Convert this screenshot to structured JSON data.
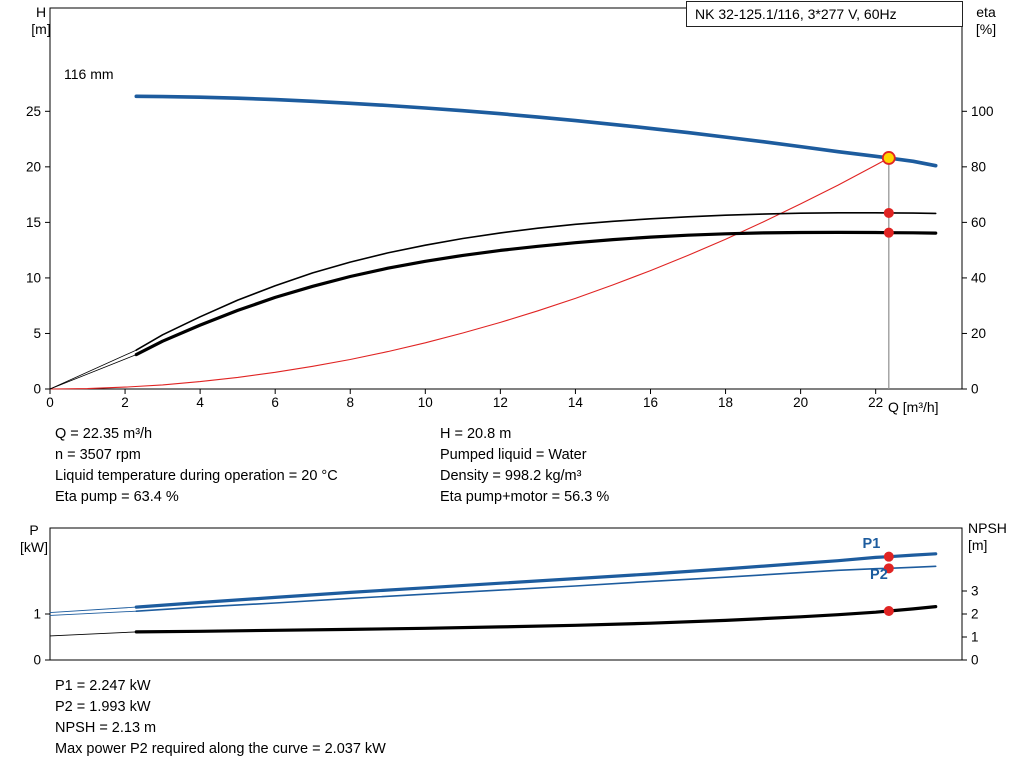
{
  "title_box": "NK 32-125.1/116, 3*277 V, 60Hz",
  "impeller_label": "116 mm",
  "axes": {
    "h": [
      "H",
      "[m]"
    ],
    "eta": [
      "eta",
      "[%]"
    ],
    "q": "Q [m³/h]",
    "p": [
      "P",
      "[kW]"
    ],
    "npsh": [
      "NPSH",
      "[m]"
    ]
  },
  "top_info": {
    "left": [
      "Q = 22.35 m³/h",
      "n = 3507 rpm",
      "Liquid temperature during operation = 20 °C",
      "Eta pump = 63.4 %"
    ],
    "right": [
      "H = 20.8 m",
      "Pumped liquid = Water",
      "Density = 998.2 kg/m³",
      "Eta pump+motor = 56.3 %"
    ]
  },
  "bottom_info": [
    "P1 = 2.247 kW",
    "P2 = 1.993 kW",
    "NPSH = 2.13 m",
    "Max power P2 required along the curve = 2.037 kW"
  ],
  "colors": {
    "curve_blue": "#1d5c9e",
    "marker_red": "#e02423",
    "duty_yellow": "#ffd500",
    "duty_line_gray": "#8f8f8f",
    "black": "#000000"
  },
  "chart_data": [
    {
      "type": "line",
      "title": "NK 32-125.1/116, 3*277 V, 60Hz",
      "xlabel": "Q [m³/h]",
      "ylabel_left": "H [m]",
      "ylabel_right": "eta [%]",
      "xlim": [
        0,
        24.3
      ],
      "ylim_left": [
        0,
        34.3
      ],
      "ylim_right": [
        0,
        137.2
      ],
      "xticks": [
        0,
        2,
        4,
        6,
        8,
        10,
        12,
        14,
        16,
        18,
        20,
        22
      ],
      "yticks_left": [
        0,
        5,
        10,
        15,
        20,
        25
      ],
      "yticks_right": [
        0,
        20,
        40,
        60,
        80,
        100
      ],
      "grid": false,
      "duty_line": {
        "q": 22.35,
        "v": 20.8,
        "axis": "left"
      },
      "series": [
        {
          "name": "head-curve-116mm",
          "axis": "left",
          "color": "#1d5c9e",
          "width": 3.6,
          "points": [
            [
              2.3,
              26.35
            ],
            [
              3,
              26.32
            ],
            [
              4,
              26.27
            ],
            [
              5,
              26.18
            ],
            [
              6,
              26.05
            ],
            [
              7,
              25.9
            ],
            [
              8,
              25.72
            ],
            [
              9,
              25.52
            ],
            [
              10,
              25.3
            ],
            [
              11,
              25.05
            ],
            [
              12,
              24.78
            ],
            [
              13,
              24.48
            ],
            [
              14,
              24.16
            ],
            [
              15,
              23.82
            ],
            [
              16,
              23.46
            ],
            [
              17,
              23.08
            ],
            [
              18,
              22.68
            ],
            [
              19,
              22.26
            ],
            [
              20,
              21.82
            ],
            [
              21,
              21.36
            ],
            [
              22,
              20.95
            ],
            [
              22.35,
              20.8
            ],
            [
              23,
              20.5
            ],
            [
              23.6,
              20.1
            ]
          ]
        },
        {
          "name": "system-curve",
          "axis": "left",
          "color": "#e02423",
          "width": 1.1,
          "points": [
            [
              0,
              0
            ],
            [
              1,
              0.04
            ],
            [
              2,
              0.17
            ],
            [
              3,
              0.37
            ],
            [
              4,
              0.67
            ],
            [
              5,
              1.04
            ],
            [
              6,
              1.5
            ],
            [
              7,
              2.04
            ],
            [
              8,
              2.66
            ],
            [
              9,
              3.37
            ],
            [
              10,
              4.16
            ],
            [
              11,
              5.04
            ],
            [
              12,
              6.0
            ],
            [
              13,
              7.04
            ],
            [
              14,
              8.16
            ],
            [
              15,
              9.37
            ],
            [
              16,
              10.66
            ],
            [
              17,
              12.03
            ],
            [
              18,
              13.49
            ],
            [
              19,
              15.03
            ],
            [
              20,
              16.66
            ],
            [
              21,
              18.36
            ],
            [
              22,
              20.16
            ],
            [
              22.35,
              20.8
            ]
          ]
        },
        {
          "name": "eta-pump-leadin",
          "axis": "right",
          "color": "#000000",
          "width": 0.8,
          "points": [
            [
              0,
              0
            ],
            [
              2.3,
              14
            ]
          ]
        },
        {
          "name": "eta-pump-curve",
          "axis": "right",
          "color": "#000000",
          "width": 1.6,
          "points": [
            [
              2.3,
              14
            ],
            [
              3,
              19.5
            ],
            [
              4,
              26
            ],
            [
              5,
              32
            ],
            [
              6,
              37.2
            ],
            [
              7,
              41.8
            ],
            [
              8,
              45.7
            ],
            [
              9,
              49
            ],
            [
              10,
              51.8
            ],
            [
              11,
              54.2
            ],
            [
              12,
              56.2
            ],
            [
              13,
              57.9
            ],
            [
              14,
              59.3
            ],
            [
              15,
              60.4
            ],
            [
              16,
              61.3
            ],
            [
              17,
              62
            ],
            [
              18,
              62.6
            ],
            [
              19,
              63
            ],
            [
              20,
              63.3
            ],
            [
              21,
              63.45
            ],
            [
              22,
              63.45
            ],
            [
              22.35,
              63.4
            ],
            [
              23,
              63.35
            ],
            [
              23.6,
              63.25
            ]
          ]
        },
        {
          "name": "eta-pump-motor-leadin",
          "axis": "right",
          "color": "#000000",
          "width": 0.8,
          "points": [
            [
              0,
              0
            ],
            [
              2.3,
              12.4
            ]
          ]
        },
        {
          "name": "eta-pump-motor-curve",
          "axis": "right",
          "color": "#000000",
          "width": 3.2,
          "points": [
            [
              2.3,
              12.4
            ],
            [
              3,
              17.2
            ],
            [
              4,
              23
            ],
            [
              5,
              28.3
            ],
            [
              6,
              33
            ],
            [
              7,
              37
            ],
            [
              8,
              40.5
            ],
            [
              9,
              43.5
            ],
            [
              10,
              46
            ],
            [
              11,
              48.1
            ],
            [
              12,
              49.9
            ],
            [
              13,
              51.4
            ],
            [
              14,
              52.7
            ],
            [
              15,
              53.8
            ],
            [
              16,
              54.7
            ],
            [
              17,
              55.4
            ],
            [
              18,
              55.9
            ],
            [
              19,
              56.2
            ],
            [
              20,
              56.35
            ],
            [
              21,
              56.4
            ],
            [
              22,
              56.35
            ],
            [
              22.35,
              56.3
            ],
            [
              23,
              56.25
            ],
            [
              23.6,
              56.15
            ]
          ]
        }
      ],
      "markers": [
        {
          "name": "duty-point",
          "q": 22.35,
          "v": 20.8,
          "axis": "left",
          "r": 6,
          "fill": "#ffd500",
          "stroke": "#e02423"
        },
        {
          "name": "eta-pump-point",
          "q": 22.35,
          "v": 63.4,
          "axis": "right",
          "r": 5,
          "fill": "#e02423"
        },
        {
          "name": "eta-pump-motor-point",
          "q": 22.35,
          "v": 56.3,
          "axis": "right",
          "r": 5,
          "fill": "#e02423"
        }
      ],
      "labels": []
    },
    {
      "type": "line",
      "title": "",
      "xlabel": "Q [m³/h]",
      "ylabel_left": "P [kW]",
      "ylabel_right": "NPSH [m]",
      "xlim": [
        0,
        24.3
      ],
      "ylim_left": [
        0,
        2.87
      ],
      "ylim_right": [
        0,
        5.74
      ],
      "xticks": [],
      "yticks_left": [
        0,
        1
      ],
      "yticks_right": [
        0,
        1,
        2,
        3
      ],
      "grid": false,
      "series": [
        {
          "name": "p1-leadin",
          "axis": "left",
          "color": "#1d5c9e",
          "width": 0.9,
          "points": [
            [
              0,
              1.03
            ],
            [
              2.3,
              1.15
            ]
          ]
        },
        {
          "name": "p1-curve",
          "axis": "left",
          "color": "#1d5c9e",
          "width": 3.2,
          "points": [
            [
              2.3,
              1.15
            ],
            [
              4,
              1.25
            ],
            [
              6,
              1.36
            ],
            [
              8,
              1.47
            ],
            [
              10,
              1.57
            ],
            [
              12,
              1.67
            ],
            [
              14,
              1.77
            ],
            [
              16,
              1.87
            ],
            [
              18,
              1.98
            ],
            [
              20,
              2.1
            ],
            [
              21,
              2.16
            ],
            [
              22,
              2.23
            ],
            [
              22.35,
              2.247
            ],
            [
              23,
              2.28
            ],
            [
              23.6,
              2.31
            ]
          ]
        },
        {
          "name": "p2-leadin",
          "axis": "left",
          "color": "#1d5c9e",
          "width": 0.9,
          "points": [
            [
              0,
              0.97
            ],
            [
              2.3,
              1.06
            ]
          ]
        },
        {
          "name": "p2-curve",
          "axis": "left",
          "color": "#1d5c9e",
          "width": 1.6,
          "points": [
            [
              2.3,
              1.06
            ],
            [
              4,
              1.15
            ],
            [
              6,
              1.24
            ],
            [
              8,
              1.34
            ],
            [
              10,
              1.43
            ],
            [
              12,
              1.52
            ],
            [
              14,
              1.61
            ],
            [
              16,
              1.71
            ],
            [
              18,
              1.8
            ],
            [
              20,
              1.9
            ],
            [
              21,
              1.95
            ],
            [
              22,
              1.985
            ],
            [
              22.35,
              1.993
            ],
            [
              23,
              2.015
            ],
            [
              23.6,
              2.037
            ]
          ]
        },
        {
          "name": "npsh-leadin",
          "axis": "right",
          "color": "#000000",
          "width": 0.9,
          "points": [
            [
              0,
              1.05
            ],
            [
              2.3,
              1.22
            ]
          ]
        },
        {
          "name": "npsh-curve",
          "axis": "right",
          "color": "#000000",
          "width": 3.2,
          "points": [
            [
              2.3,
              1.22
            ],
            [
              4,
              1.25
            ],
            [
              6,
              1.29
            ],
            [
              8,
              1.33
            ],
            [
              10,
              1.38
            ],
            [
              12,
              1.44
            ],
            [
              14,
              1.51
            ],
            [
              16,
              1.6
            ],
            [
              18,
              1.72
            ],
            [
              20,
              1.88
            ],
            [
              21,
              1.97
            ],
            [
              22,
              2.08
            ],
            [
              22.35,
              2.13
            ],
            [
              23,
              2.22
            ],
            [
              23.6,
              2.32
            ]
          ]
        }
      ],
      "markers": [
        {
          "name": "p1-point",
          "q": 22.35,
          "v": 2.247,
          "axis": "left",
          "r": 5,
          "fill": "#e02423"
        },
        {
          "name": "p2-point",
          "q": 22.35,
          "v": 1.993,
          "axis": "left",
          "r": 5,
          "fill": "#e02423"
        },
        {
          "name": "npsh-point",
          "q": 22.35,
          "v": 2.13,
          "axis": "right",
          "r": 5,
          "fill": "#e02423"
        }
      ],
      "labels": [
        {
          "text": "P1",
          "q": 21.65,
          "v": 2.44,
          "axis": "left",
          "color": "#1d5c9e"
        },
        {
          "text": "P2",
          "q": 21.85,
          "v": 1.76,
          "axis": "left",
          "color": "#1d5c9e"
        }
      ]
    }
  ]
}
